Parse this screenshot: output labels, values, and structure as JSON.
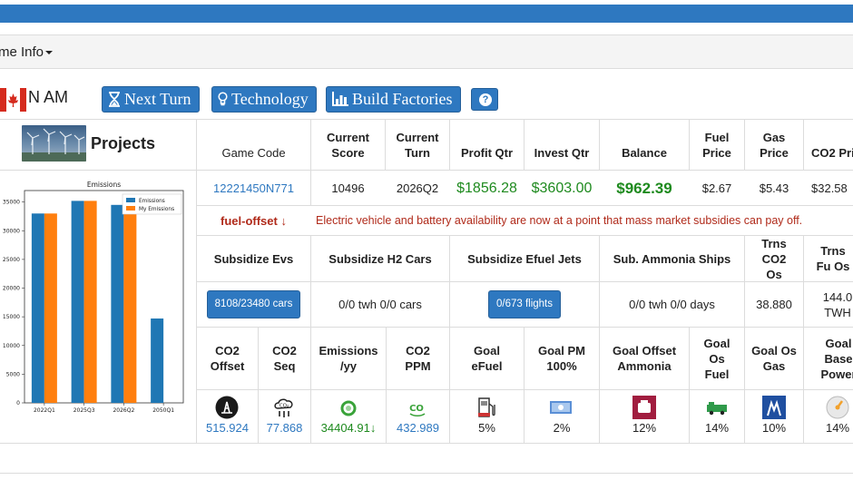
{
  "menu": {
    "game_info_label": "me Info"
  },
  "region": {
    "name": "N AM"
  },
  "toolbar": {
    "next_turn_label": "Next Turn",
    "technology_label": "Technology",
    "build_factories_label": "Build Factories",
    "help_label": "?"
  },
  "projects": {
    "title": "Projects"
  },
  "stats_headers": {
    "game_code": "Game Code",
    "current_score": "Current Score",
    "current_turn": "Current Turn",
    "profit_qtr": "Profit Qtr",
    "invest_qtr": "Invest Qtr",
    "balance": "Balance",
    "fuel_price": "Fuel Price",
    "gas_price": "Gas Price",
    "co2_price": "CO2 Pri"
  },
  "stats_values": {
    "game_code": "12221450N771",
    "current_score": "10496",
    "current_turn": "2026Q2",
    "profit_qtr": "$1856.28",
    "invest_qtr": "$3603.00",
    "balance": "$962.39",
    "fuel_price": "$2.67",
    "gas_price": "$5.43",
    "co2_price": "$32.58"
  },
  "news": {
    "tag": "fuel-offset ↓",
    "text": "Electric vehicle and battery availability are now at a point that mass market subsidies can pay off."
  },
  "subsidy_headers": {
    "evs": "Subsidize Evs",
    "h2_cars": "Subsidize H2 Cars",
    "efuel_jets": "Subsidize Efuel Jets",
    "ammonia_ships": "Sub. Ammonia Ships",
    "trns_co2_os": "Trns CO2 Os",
    "trns_fuel_os": "Trns Fu Os"
  },
  "subsidy_values": {
    "evs": "8108/23480 cars",
    "h2_cars": "0/0 twh 0/0 cars",
    "efuel_jets": "0/673 flights",
    "ammonia_ships": "0/0 twh 0/0 days",
    "trns_co2_os": "38.880",
    "trns_fuel_os_line1": "144.0",
    "trns_fuel_os_line2": "TWH"
  },
  "goal_headers": {
    "co2_offset": "CO2 Offset",
    "co2_seq": "CO2 Seq",
    "emissions_yy": "Emissions /yy",
    "co2_ppm": "CO2 PPM",
    "goal_efuel": "Goal eFuel",
    "goal_pm": "Goal PM 100%",
    "goal_offset_ammonia": "Goal Offset Ammonia",
    "goal_os_fuel": "Goal Os Fuel",
    "goal_os_gas": "Goal Os Gas",
    "goal_base_power": "Goal Base Power"
  },
  "goal_values": {
    "co2_offset": "515.924",
    "co2_seq": "77.868",
    "emissions_yy": "34404.91↓",
    "co2_ppm": "432.989",
    "goal_efuel": "5%",
    "goal_pm": "2%",
    "goal_offset_ammonia": "12%",
    "goal_os_fuel": "14%",
    "goal_os_gas": "10%",
    "goal_base_power": "14%"
  },
  "icons": {
    "co2_offset": "oil-rig-icon",
    "co2_seq": "co2-storage-icon",
    "emissions": "recycle-icon",
    "co2_ppm": "co2-leaf-icon",
    "efuel": "fuel-pump-icon",
    "pm": "solar-panel-icon",
    "ammonia": "ammonia-tank-icon",
    "os_fuel": "fuel-truck-icon",
    "os_gas": "gas-flame-icon",
    "base_power": "power-dial-icon"
  },
  "colors": {
    "primary": "#2e78c0",
    "money_green": "#1e8a1e",
    "alert_red": "#b02a1a",
    "series_emissions": "#1f77b4",
    "series_my_emissions": "#ff7f0e"
  },
  "chart_data": {
    "type": "bar",
    "title": "Emissions",
    "categories": [
      "2022Q1",
      "2025Q3",
      "2026Q2",
      "2050Q1"
    ],
    "series": [
      {
        "name": "Emissions",
        "values": [
          33000,
          35200,
          34500,
          14700
        ]
      },
      {
        "name": "My Emissions",
        "values": [
          33000,
          35200,
          34500,
          null
        ]
      }
    ],
    "ylim": [
      0,
      37000
    ],
    "yticks": [
      0,
      5000,
      10000,
      15000,
      20000,
      25000,
      30000,
      35000
    ],
    "legend": "top-right",
    "grid": false
  }
}
